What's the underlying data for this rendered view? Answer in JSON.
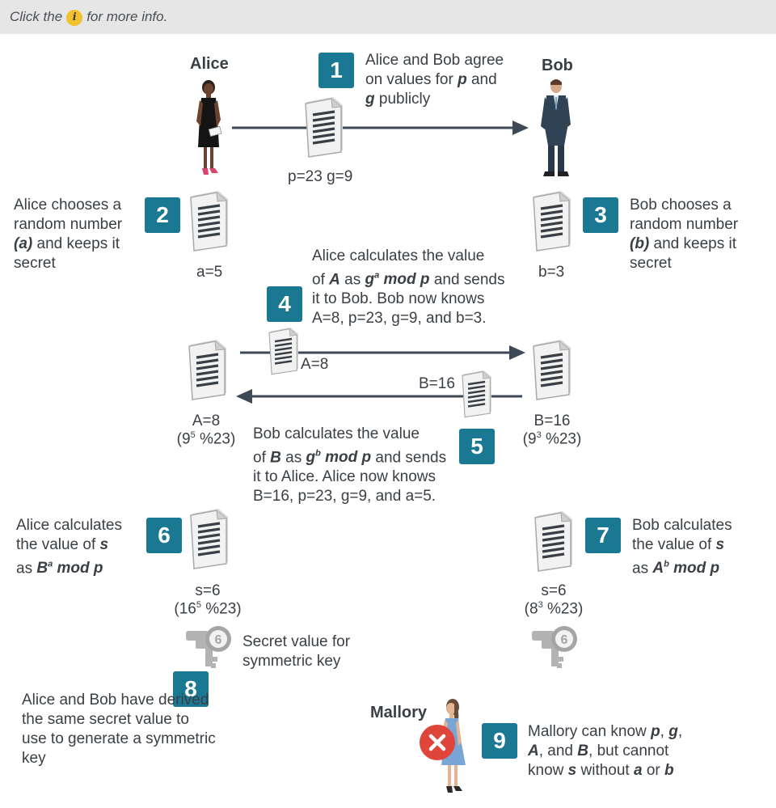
{
  "hint": {
    "before": "Click the",
    "icon_letter": "i",
    "after": "for more info."
  },
  "actors": {
    "alice": "Alice",
    "bob": "Bob",
    "mallory": "Mallory"
  },
  "steps": {
    "s1": {
      "num": "1"
    },
    "s2": {
      "num": "2",
      "text": "Alice chooses a random number (a) and keeps it secret"
    },
    "s3": {
      "num": "3",
      "text": "Bob chooses a random number (b) and keeps it secret"
    },
    "s4": {
      "num": "4"
    },
    "s5": {
      "num": "5"
    },
    "s6": {
      "num": "6"
    },
    "s7": {
      "num": "7"
    },
    "s8": {
      "num": "8",
      "text": "Alice and Bob have derived the same secret value to use to generate a symmetric key"
    },
    "s9": {
      "num": "9"
    }
  },
  "step1_text": {
    "l1": "Alice and Bob agree",
    "l2a": "on values for",
    "p": "p",
    "l2b": "and",
    "g": "g",
    "l3": "publicly"
  },
  "step2_lines": {
    "l1": "Alice chooses a",
    "l2": "random number",
    "l3a": "(a)",
    "l3b": "and keeps it",
    "l4": "secret"
  },
  "step3_lines": {
    "l1": "Bob chooses a",
    "l2": "random number",
    "l3a": "(b)",
    "l3b": "and keeps it",
    "l4": "secret"
  },
  "step4_text": {
    "l1": "Alice calculates the value",
    "l2a": "of",
    "A": "A",
    "l2b": "as",
    "g": "g",
    "sup": "a",
    "mod": "mod p",
    "l2c": "and sends",
    "l3": "it to Bob. Bob now knows",
    "l4": "A=8, p=23, g=9, and b=3."
  },
  "step5_text": {
    "l1": "Bob calculates the value",
    "l2a": "of",
    "B": "B",
    "l2b": "as",
    "g": "g",
    "sup": "b",
    "mod": "mod p",
    "l2c": "and sends",
    "l3": "it to Alice. Alice now knows",
    "l4": "B=16, p=23, g=9, and a=5."
  },
  "step6_text": {
    "l1": "Alice calculates",
    "l2a": "the value of",
    "s": "s",
    "l3a": "as",
    "B": "B",
    "sup": "a",
    "mod": "mod p"
  },
  "step7_text": {
    "l1": "Bob calculates",
    "l2a": "the value of",
    "s": "s",
    "l3a": "as",
    "A": "A",
    "sup": "b",
    "mod": "mod p"
  },
  "step9_text": {
    "l1a": "Mallory can know",
    "p": "p",
    "g": "g",
    "A": "A",
    "l2b": ", and",
    "B": "B",
    "l2c": ", but cannot",
    "l3a": "know",
    "s": "s",
    "l3b": "without",
    "a": "a",
    "or": "or",
    "b": "b"
  },
  "values": {
    "pg": "p=23  g=9",
    "a": "a=5",
    "b": "b=3",
    "A_arrow": "A=8",
    "B_arrow": "B=16",
    "A_calc": "A=8",
    "A_formula_base": "(9",
    "A_formula_exp": "5",
    "A_formula_rest": " %23)",
    "B_calc": "B=16",
    "B_formula_base": "(9",
    "B_formula_exp": "3",
    "B_formula_rest": " %23)",
    "s_alice": "s=6",
    "s_alice_base": "(16",
    "s_alice_exp": "5",
    "s_alice_rest": " %23)",
    "s_bob": "s=6",
    "s_bob_base": "(8",
    "s_bob_exp": "3",
    "s_bob_rest": " %23)",
    "key_num": "6"
  },
  "secret_label": {
    "l1": "Secret value for",
    "l2": "symmetric key"
  },
  "colors": {
    "teal": "#1b7893",
    "arrow": "#3d4a55",
    "red": "#e0453a",
    "gold": "#f2c12e"
  }
}
